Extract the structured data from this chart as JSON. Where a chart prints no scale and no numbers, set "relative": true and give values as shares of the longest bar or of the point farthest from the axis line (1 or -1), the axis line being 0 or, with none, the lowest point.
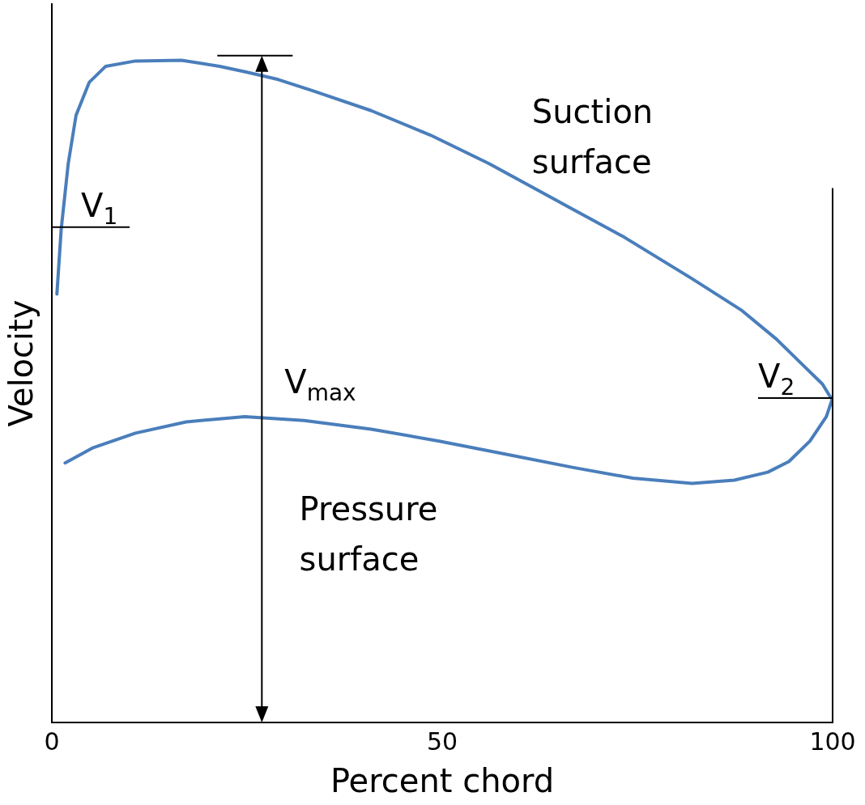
{
  "chart_data": {
    "type": "line",
    "relative": true,
    "xlabel": "Percent chord",
    "ylabel": "Velocity",
    "xlim": [
      0,
      100
    ],
    "xticks": [
      0,
      50,
      100
    ],
    "tick_labels": "x",
    "legend": false,
    "grid": false,
    "series": [
      {
        "name": "Suction surface",
        "color": "#4a7ebb",
        "x": [
          0.65,
          1.2,
          2.1,
          3.1,
          4.8,
          6.9,
          10.7,
          16.6,
          21.5,
          25.0,
          29.0,
          33.4,
          40.9,
          48.5,
          56.0,
          64.7,
          73.3,
          81.9,
          88.4,
          92.8,
          96.0,
          98.7,
          99.8
        ],
        "values": [
          0.647,
          0.745,
          0.844,
          0.917,
          0.967,
          0.991,
          0.999,
          1,
          0.991,
          0.982,
          0.971,
          0.954,
          0.924,
          0.887,
          0.844,
          0.788,
          0.733,
          0.671,
          0.622,
          0.579,
          0.542,
          0.511,
          0.49
        ]
      },
      {
        "name": "Pressure surface",
        "color": "#4a7ebb",
        "x": [
          1.7,
          5.3,
          10.7,
          17.2,
          24.7,
          32.3,
          40.9,
          49.6,
          58.2,
          66.8,
          74.4,
          82.0,
          87.4,
          91.7,
          94.4,
          97.1,
          99.2,
          100
        ],
        "values": [
          0.392,
          0.415,
          0.437,
          0.454,
          0.462,
          0.456,
          0.443,
          0.425,
          0.405,
          0.385,
          0.369,
          0.361,
          0.366,
          0.378,
          0.394,
          0.425,
          0.462,
          0.49
        ]
      }
    ],
    "annotations": [
      "V$_{1}$",
      "V$_{max}$",
      "V$_{2}$"
    ]
  }
}
